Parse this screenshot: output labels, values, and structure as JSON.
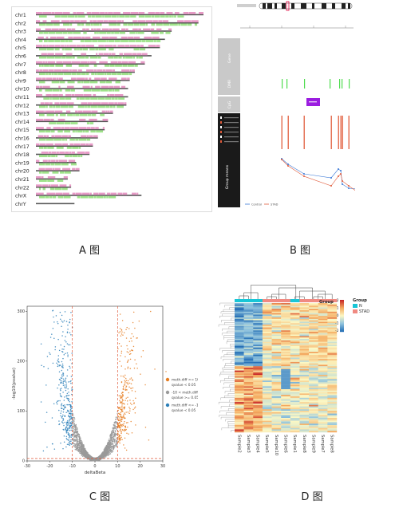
{
  "captions": {
    "a": "A 图",
    "b": "B 图",
    "c": "C 图",
    "d": "D 图"
  },
  "panel_a": {
    "chromosomes": [
      "chr1",
      "chr2",
      "chr3",
      "chr4",
      "chr5",
      "chr6",
      "chr7",
      "chr8",
      "chr9",
      "chr10",
      "chr11",
      "chr12",
      "chr13",
      "chr14",
      "chr15",
      "chr16",
      "chr17",
      "chr18",
      "chr19",
      "chr20",
      "chr21",
      "chr22",
      "chrX",
      "chrY"
    ],
    "relative_lengths": [
      1.0,
      0.97,
      0.81,
      0.77,
      0.74,
      0.69,
      0.65,
      0.59,
      0.56,
      0.55,
      0.55,
      0.54,
      0.46,
      0.43,
      0.41,
      0.37,
      0.34,
      0.32,
      0.24,
      0.26,
      0.19,
      0.21,
      0.63,
      0.23
    ],
    "colors": {
      "pink": "#e79ac6",
      "green": "#9fe38a",
      "ideogram": "#555555"
    }
  },
  "panel_b": {
    "track_labels": [
      "Gene",
      "DMR",
      "CpG",
      "Group means"
    ],
    "colors": {
      "track_bg": "#c9c9c9",
      "dark": "#1a1a1a",
      "green": "#4fdc4f",
      "purple": "#9b1de0",
      "red": "#e05a3a",
      "blue": "#3a78d6"
    },
    "legend": [
      "Control",
      "STAD"
    ]
  },
  "panel_c": {
    "xlabel": "deltaBeta",
    "ylabel": "-log10(pvalue)",
    "x_ticks": [
      -30,
      -20,
      -10,
      0,
      10,
      20,
      30
    ],
    "y_ticks": [
      0,
      100,
      200,
      300
    ],
    "legend": [
      {
        "lines": [
          "meth.diff >= 10",
          "qvalue < 0.05"
        ],
        "color": "#e67e22"
      },
      {
        "lines": [
          "-10 < meth.diff < 10",
          "qvalue >= 0.05"
        ],
        "color": "#9a9a9a"
      },
      {
        "lines": [
          "meth.diff <= -10",
          "qvalue < 0.05"
        ],
        "color": "#2c7fb8"
      }
    ]
  },
  "panel_d": {
    "samples": [
      "Sample2",
      "Sample3",
      "Sample4",
      "Sample5",
      "Sample10",
      "Sample6",
      "Sample1",
      "Sample8",
      "Sample9",
      "Sample7",
      "Sample8"
    ],
    "group_colors": {
      "N": "#18c6d6",
      "STAD": "#f08a82"
    },
    "group_title": "Group",
    "group_items": [
      "N",
      "STAD"
    ],
    "scale_ticks": [
      "2",
      "1",
      "0",
      "-1",
      "-2"
    ]
  },
  "chart_data": [
    {
      "type": "scatter",
      "title": "",
      "xlabel": "deltaBeta",
      "ylabel": "-log10(pvalue)",
      "xlim": [
        -30,
        30
      ],
      "ylim": [
        0,
        310
      ],
      "series": [
        {
          "name": "meth.diff >= 10, qvalue < 0.05",
          "color": "#e67e22"
        },
        {
          "name": "-10 < meth.diff < 10, qvalue >= 0.05",
          "color": "#9a9a9a"
        },
        {
          "name": "meth.diff <= -10, qvalue < 0.05",
          "color": "#2c7fb8"
        }
      ],
      "thresholds": {
        "x": [
          -10,
          10
        ],
        "y": 5
      }
    },
    {
      "type": "heatmap",
      "columns": [
        "Sample2",
        "Sample3",
        "Sample4",
        "Sample5",
        "Sample10",
        "Sample6",
        "Sample1",
        "Sample8",
        "Sample9",
        "Sample7",
        "Sample8"
      ],
      "column_groups": [
        "N",
        "N",
        "N",
        "STAD",
        "STAD",
        "STAD",
        "N",
        "STAD",
        "STAD",
        "STAD",
        "STAD"
      ],
      "scale": [
        -2,
        2
      ]
    }
  ]
}
